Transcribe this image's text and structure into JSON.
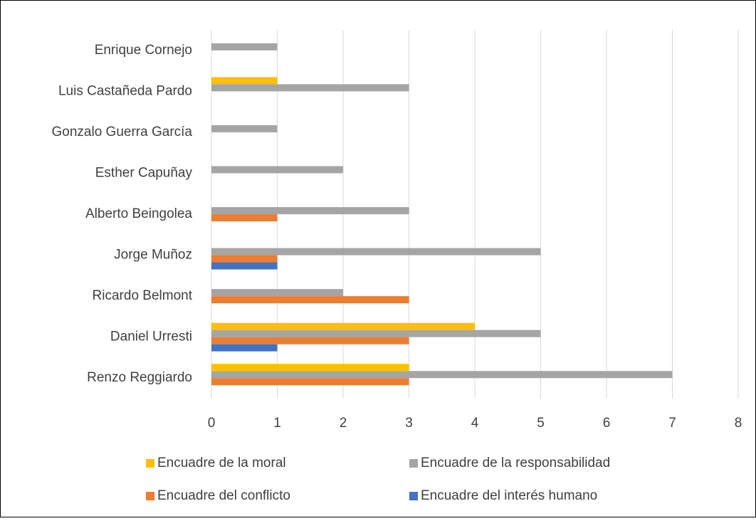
{
  "chart_data": {
    "type": "hbar",
    "categories": [
      "Enrique Cornejo",
      "Luis Castañeda Pardo",
      "Gonzalo Guerra García",
      "Esther Capuñay",
      "Alberto Beingolea",
      "Jorge Muñoz",
      "Ricardo Belmont",
      "Daniel Urresti",
      "Renzo Reggiardo"
    ],
    "series": [
      {
        "name": "Encuadre de la moral",
        "color": "#ffc000",
        "values": [
          0,
          1,
          0,
          0,
          0,
          0,
          0,
          4,
          3
        ]
      },
      {
        "name": "Encuadre de la responsabilidad",
        "color": "#a5a5a5",
        "values": [
          1,
          3,
          1,
          2,
          3,
          5,
          2,
          5,
          7
        ]
      },
      {
        "name": "Encuadre del conflicto",
        "color": "#ed7d31",
        "values": [
          0,
          0,
          0,
          0,
          1,
          1,
          3,
          3,
          3
        ]
      },
      {
        "name": "Encuadre del interés humano",
        "color": "#4472c4",
        "values": [
          0,
          0,
          0,
          0,
          0,
          1,
          0,
          1,
          0
        ]
      }
    ],
    "xlim": [
      0,
      8
    ],
    "xticks": [
      0,
      1,
      2,
      3,
      4,
      5,
      6,
      7,
      8
    ],
    "grid": true,
    "legend": "bottom"
  }
}
